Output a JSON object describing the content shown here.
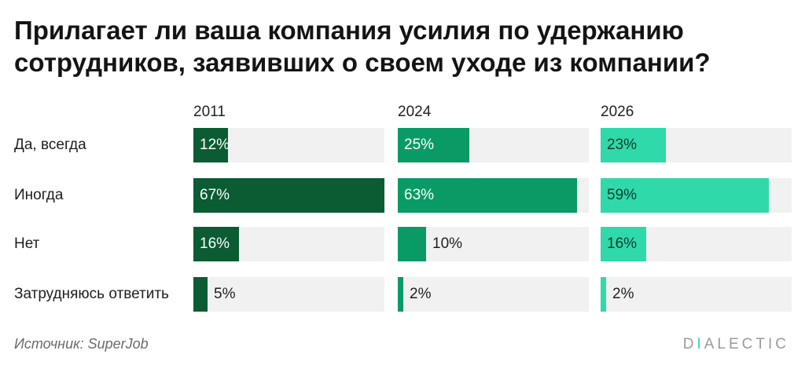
{
  "title": "Прилагает ли ваша компания усилия по удержанию сотрудников, заявивших о своем уходе из компании?",
  "source": "Источник: SuperJob",
  "logo": {
    "first": "D",
    "accent": "I",
    "rest": "ALECTIC"
  },
  "colors": {
    "series_2011": "#0b5b33",
    "series_2024": "#0a9a66",
    "series_2026": "#2fd9aa",
    "track": "#f1f1f1"
  },
  "chart_data": {
    "type": "bar",
    "orientation": "horizontal",
    "layout": "small-multiples",
    "categories": [
      "Да, всегда",
      "Иногда",
      "Нет",
      "Затрудняюсь ответить"
    ],
    "series": [
      {
        "name": "2011",
        "values": [
          12,
          67,
          16,
          5
        ],
        "labels": [
          "12%",
          "67%",
          "16%",
          "5%"
        ]
      },
      {
        "name": "2024",
        "values": [
          25,
          63,
          10,
          2
        ],
        "labels": [
          "25%",
          "63%",
          "10%",
          "2%"
        ]
      },
      {
        "name": "2026",
        "values": [
          23,
          59,
          16,
          2
        ],
        "labels": [
          "23%",
          "59%",
          "16%",
          "2%"
        ]
      }
    ],
    "xlim": [
      0,
      67
    ],
    "unit": "%"
  }
}
